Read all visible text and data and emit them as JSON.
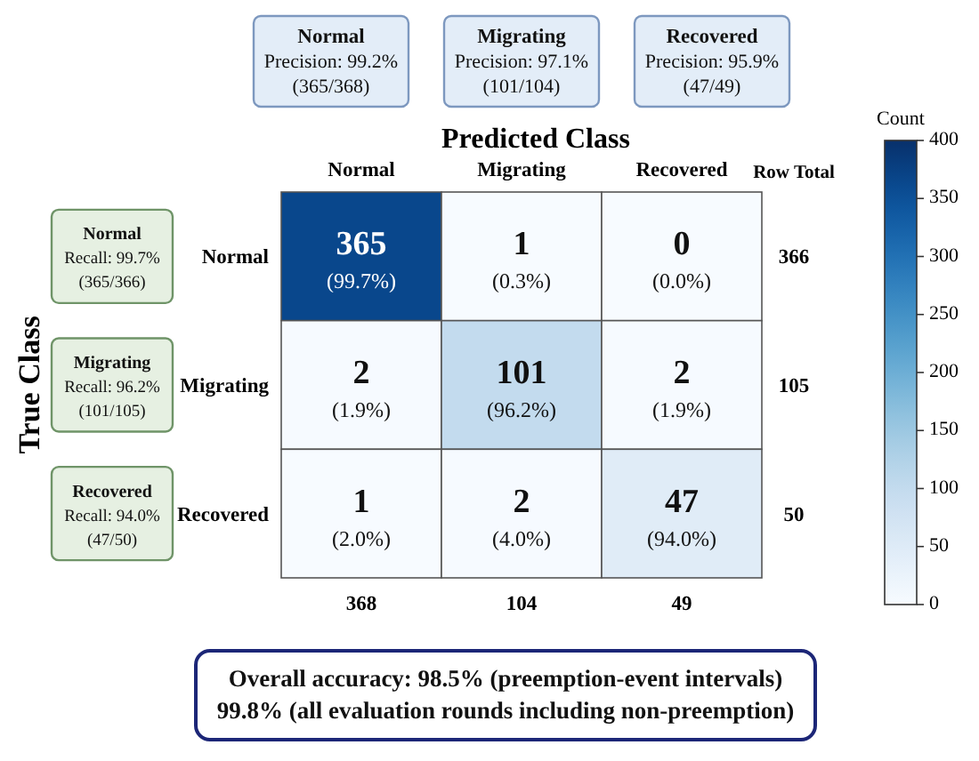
{
  "chart_data": {
    "type": "heatmap",
    "xlabel": "Predicted Class",
    "ylabel": "True Class",
    "y2label": "Row Total",
    "clabel": "Count",
    "categories": [
      "Normal",
      "Migrating",
      "Recovered"
    ],
    "y_categories": [
      "Normal",
      "Migrating",
      "Recovered"
    ],
    "y2_categories": [
      "366",
      "105",
      "50"
    ],
    "cells": [
      [
        365,
        1,
        0
      ],
      [
        2,
        101,
        2
      ],
      [
        1,
        2,
        47
      ]
    ],
    "cell_labels": [
      [
        "365\n(99.7%)",
        "1\n(0.3%)",
        "0\n(0.0%)"
      ],
      [
        "2\n(1.9%)",
        "101\n(96.2%)",
        "2\n(1.9%)"
      ],
      [
        "1\n(2.0%)",
        "2\n(4.0%)",
        "47\n(94.0%)"
      ]
    ],
    "totals": [
      "368",
      "104",
      "49"
    ],
    "clim": [
      0,
      400
    ],
    "cticks": [
      0,
      50,
      100,
      150,
      200,
      250,
      300,
      350,
      400
    ],
    "annotations": [
      "Precision: 99.2%\n(365/368)",
      "Precision: 97.1%\n(101/104)",
      "Precision: 95.9%\n(47/49)",
      "Recall: 99.7%\n(365/366)",
      "Recall: 96.2%\n(101/105)",
      "Recall: 94.0%\n(47/50)",
      "Overall accuracy: 98.5% (preemption-event intervals)\n99.8% (all evaluation rounds including non-preemption)"
    ]
  }
}
